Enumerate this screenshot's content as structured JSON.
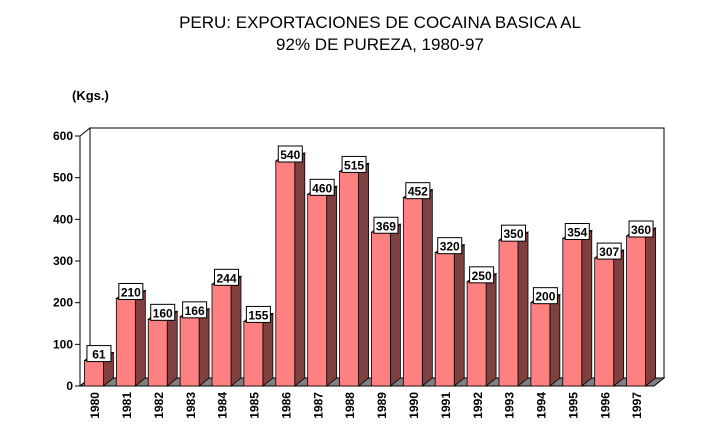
{
  "chart_data": {
    "type": "bar",
    "title_line1": "PERU: EXPORTACIONES DE COCAINA BASICA AL",
    "title_line2": "92% DE PUREZA, 1980-97",
    "ylabel": "(Kgs.)",
    "xlabel": "",
    "ylim": [
      0,
      600
    ],
    "yticks": [
      0,
      100,
      200,
      300,
      400,
      500,
      600
    ],
    "categories": [
      "1980",
      "1981",
      "1982",
      "1983",
      "1984",
      "1985",
      "1986",
      "1987",
      "1988",
      "1989",
      "1990",
      "1991",
      "1992",
      "1993",
      "1994",
      "1995",
      "1996",
      "1997"
    ],
    "values": [
      61,
      210,
      160,
      166,
      244,
      155,
      540,
      460,
      515,
      369,
      452,
      320,
      250,
      350,
      200,
      354,
      307,
      360
    ],
    "colors": {
      "bar_front": "#ff8080",
      "bar_side": "#804040",
      "floor": "#808080",
      "wall": "#ffffff"
    }
  }
}
